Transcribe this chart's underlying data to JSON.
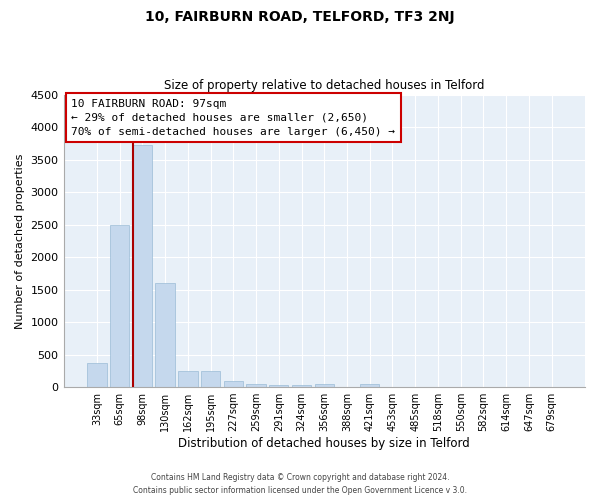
{
  "title": "10, FAIRBURN ROAD, TELFORD, TF3 2NJ",
  "subtitle": "Size of property relative to detached houses in Telford",
  "xlabel": "Distribution of detached houses by size in Telford",
  "ylabel": "Number of detached properties",
  "bar_labels": [
    "33sqm",
    "65sqm",
    "98sqm",
    "130sqm",
    "162sqm",
    "195sqm",
    "227sqm",
    "259sqm",
    "291sqm",
    "324sqm",
    "356sqm",
    "388sqm",
    "421sqm",
    "453sqm",
    "485sqm",
    "518sqm",
    "550sqm",
    "582sqm",
    "614sqm",
    "647sqm",
    "679sqm"
  ],
  "bar_values": [
    375,
    2500,
    3725,
    1600,
    240,
    240,
    95,
    55,
    30,
    30,
    55,
    0,
    55,
    0,
    0,
    0,
    0,
    0,
    0,
    0,
    0
  ],
  "marker_index": 2,
  "annotation_title": "10 FAIRBURN ROAD: 97sqm",
  "annotation_line1": "← 29% of detached houses are smaller (2,650)",
  "annotation_line2": "70% of semi-detached houses are larger (6,450) →",
  "ylim": [
    0,
    4500
  ],
  "yticks": [
    0,
    500,
    1000,
    1500,
    2000,
    2500,
    3000,
    3500,
    4000,
    4500
  ],
  "bar_color": "#c5d8ed",
  "bar_edge_color": "#9bbcd6",
  "marker_color": "#aa0000",
  "annotation_box_edge": "#cc0000",
  "footer_line1": "Contains HM Land Registry data © Crown copyright and database right 2024.",
  "footer_line2": "Contains public sector information licensed under the Open Government Licence v 3.0.",
  "background_color": "#ffffff",
  "plot_bg_color": "#e8f0f8",
  "grid_color": "#ffffff"
}
